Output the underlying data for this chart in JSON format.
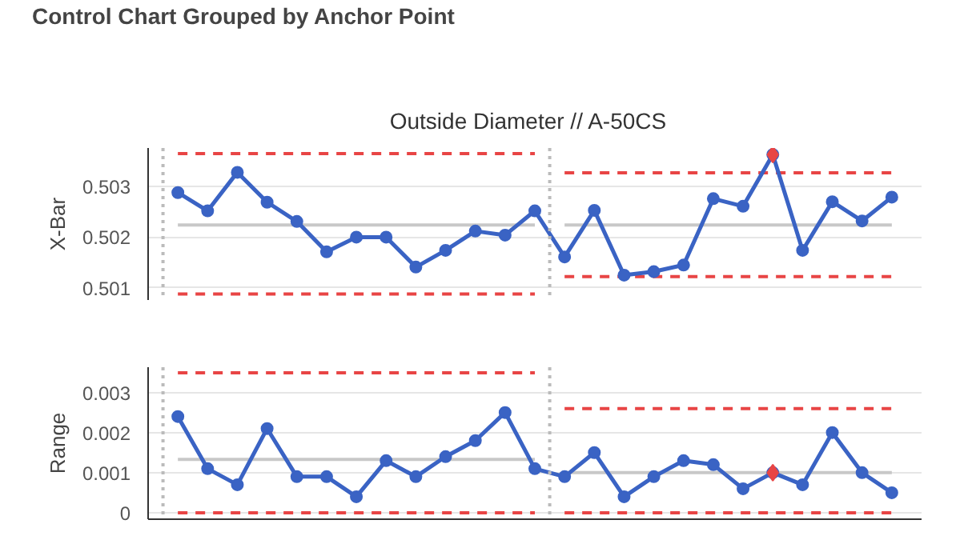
{
  "chart_data": [
    {
      "type": "line",
      "title": "Control Chart Grouped by Anchor Point",
      "subtitle": "Outside Diameter  //  A-50CS",
      "ylabel": "X-Bar",
      "categories": [
        null,
        null,
        null,
        null,
        null,
        null,
        null,
        null,
        null,
        null,
        null,
        null,
        null,
        null,
        null,
        null,
        null,
        null,
        null,
        null,
        null,
        null,
        null,
        null,
        null
      ],
      "ylim": [
        0.50076,
        0.50376
      ],
      "yticks": [
        0.501,
        0.502,
        0.503
      ],
      "tick_labels": "y",
      "grid": "y",
      "series": [
        {
          "color": "#c8c8c8",
          "line_style": "solid",
          "values": [
            0.50224,
            0.50224,
            0.50224,
            0.50224,
            0.50224,
            0.50224,
            0.50224,
            0.50224,
            0.50224,
            0.50224,
            0.50224,
            0.50224,
            0.50224,
            null,
            null,
            null,
            null,
            null,
            null,
            null,
            null,
            null,
            null,
            null,
            null
          ]
        },
        {
          "color": "#c8c8c8",
          "line_style": "solid",
          "values": [
            null,
            null,
            null,
            null,
            null,
            null,
            null,
            null,
            null,
            null,
            null,
            null,
            null,
            0.50224,
            0.50224,
            0.50224,
            0.50224,
            0.50224,
            0.50224,
            0.50224,
            0.50224,
            0.50224,
            0.50224,
            0.50224,
            0.50224
          ]
        },
        {
          "color": "#e84545",
          "line_style": "dashed",
          "values": [
            0.50365,
            0.50365,
            0.50365,
            0.50365,
            0.50365,
            0.50365,
            0.50365,
            0.50365,
            0.50365,
            0.50365,
            0.50365,
            0.50365,
            0.50365,
            null,
            null,
            null,
            null,
            null,
            null,
            null,
            null,
            null,
            null,
            null,
            null
          ]
        },
        {
          "color": "#e84545",
          "line_style": "dashed",
          "values": [
            0.50088,
            0.50088,
            0.50088,
            0.50088,
            0.50088,
            0.50088,
            0.50088,
            0.50088,
            0.50088,
            0.50088,
            0.50088,
            0.50088,
            0.50088,
            null,
            null,
            null,
            null,
            null,
            null,
            null,
            null,
            null,
            null,
            null,
            null
          ]
        },
        {
          "color": "#e84545",
          "line_style": "dashed",
          "values": [
            null,
            null,
            null,
            null,
            null,
            null,
            null,
            null,
            null,
            null,
            null,
            null,
            null,
            0.50327,
            0.50327,
            0.50327,
            0.50327,
            0.50327,
            0.50327,
            0.50327,
            0.50327,
            0.50327,
            0.50327,
            0.50327,
            0.50327
          ]
        },
        {
          "color": "#e84545",
          "line_style": "dashed",
          "values": [
            null,
            null,
            null,
            null,
            null,
            null,
            null,
            null,
            null,
            null,
            null,
            null,
            null,
            0.50122,
            0.50122,
            0.50122,
            0.50122,
            0.50122,
            0.50122,
            0.50122,
            0.50122,
            0.50122,
            0.50122,
            0.50122,
            0.50122
          ]
        },
        {
          "color": "#3a63c4",
          "line_style": "solid",
          "marker": "circle",
          "values": [
            0.50288,
            0.50252,
            0.50328,
            0.50269,
            0.50231,
            0.50171,
            0.502,
            0.502,
            0.50141,
            0.50174,
            0.50212,
            0.50204,
            0.50252,
            0.50161,
            0.50253,
            0.50125,
            0.50132,
            0.50145,
            0.50276,
            0.50261,
            0.50363,
            0.50174,
            0.5027,
            0.50232,
            0.50279
          ]
        },
        {
          "type": "scatter",
          "color": "#e84545",
          "marker": "diamond",
          "values": [
            null,
            null,
            null,
            null,
            null,
            null,
            null,
            null,
            null,
            null,
            null,
            null,
            null,
            null,
            null,
            null,
            null,
            null,
            null,
            null,
            0.50363,
            null,
            null,
            null,
            null
          ]
        }
      ]
    },
    {
      "type": "line",
      "ylabel": "Range",
      "categories": [
        null,
        null,
        null,
        null,
        null,
        null,
        null,
        null,
        null,
        null,
        null,
        null,
        null,
        null,
        null,
        null,
        null,
        null,
        null,
        null,
        null,
        null,
        null,
        null,
        null
      ],
      "ylim": [
        -0.00016,
        0.00363
      ],
      "yticks": [
        0,
        0.001,
        0.002,
        0.003
      ],
      "tick_labels": "y",
      "grid": "y",
      "series": [
        {
          "color": "#c8c8c8",
          "line_style": "solid",
          "values": [
            0.00133,
            0.00133,
            0.00133,
            0.00133,
            0.00133,
            0.00133,
            0.00133,
            0.00133,
            0.00133,
            0.00133,
            0.00133,
            0.00133,
            0.00133,
            null,
            null,
            null,
            null,
            null,
            null,
            null,
            null,
            null,
            null,
            null,
            null
          ]
        },
        {
          "color": "#c8c8c8",
          "line_style": "solid",
          "values": [
            null,
            null,
            null,
            null,
            null,
            null,
            null,
            null,
            null,
            null,
            null,
            null,
            null,
            0.001,
            0.001,
            0.001,
            0.001,
            0.001,
            0.001,
            0.001,
            0.001,
            0.001,
            0.001,
            0.001,
            0.001
          ]
        },
        {
          "color": "#e84545",
          "line_style": "dashed",
          "values": [
            0.00349,
            0.00349,
            0.00349,
            0.00349,
            0.00349,
            0.00349,
            0.00349,
            0.00349,
            0.00349,
            0.00349,
            0.00349,
            0.00349,
            0.00349,
            null,
            null,
            null,
            null,
            null,
            null,
            null,
            null,
            null,
            null,
            null,
            null
          ]
        },
        {
          "color": "#e84545",
          "line_style": "dashed",
          "values": [
            0,
            0,
            0,
            0,
            0,
            0,
            0,
            0,
            0,
            0,
            0,
            0,
            0,
            null,
            null,
            null,
            null,
            null,
            null,
            null,
            null,
            null,
            null,
            null,
            null
          ]
        },
        {
          "color": "#e84545",
          "line_style": "dashed",
          "values": [
            null,
            null,
            null,
            null,
            null,
            null,
            null,
            null,
            null,
            null,
            null,
            null,
            null,
            0.0026,
            0.0026,
            0.0026,
            0.0026,
            0.0026,
            0.0026,
            0.0026,
            0.0026,
            0.0026,
            0.0026,
            0.0026,
            0.0026
          ]
        },
        {
          "color": "#e84545",
          "line_style": "dashed",
          "values": [
            null,
            null,
            null,
            null,
            null,
            null,
            null,
            null,
            null,
            null,
            null,
            null,
            null,
            0,
            0,
            0,
            0,
            0,
            0,
            0,
            0,
            0,
            0,
            0,
            0
          ]
        },
        {
          "color": "#3a63c4",
          "line_style": "solid",
          "marker": "circle",
          "values": [
            0.0024,
            0.0011,
            0.0007,
            0.0021,
            0.0009,
            0.0009,
            0.0004,
            0.0013,
            0.0009,
            0.0014,
            0.0018,
            0.0025,
            0.0011,
            0.0009,
            0.0015,
            0.0004,
            0.0009,
            0.0013,
            0.0012,
            0.0006,
            0.001,
            0.0007,
            0.002,
            0.001,
            0.0005
          ]
        },
        {
          "type": "scatter",
          "color": "#e84545",
          "marker": "diamond",
          "values": [
            null,
            null,
            null,
            null,
            null,
            null,
            null,
            null,
            null,
            null,
            null,
            null,
            null,
            null,
            null,
            null,
            null,
            null,
            null,
            null,
            0.001,
            null,
            null,
            null,
            null
          ]
        }
      ]
    }
  ]
}
